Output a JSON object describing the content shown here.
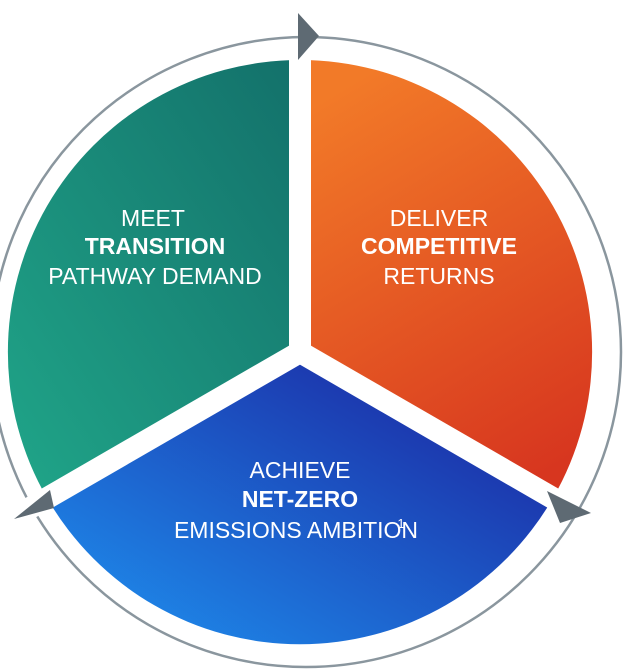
{
  "segments": {
    "transition": {
      "line1": "MEET",
      "line2": "TRANSITION",
      "line3": "PATHWAY DEMAND"
    },
    "returns": {
      "line1": "DELIVER",
      "line2": "COMPETITIVE",
      "line3": "RETURNS"
    },
    "netzero": {
      "line1": "ACHIEVE",
      "line2": "NET-ZERO",
      "line3": "EMISSIONS AMBITION",
      "footnote": "1"
    }
  },
  "colors": {
    "teal_start": "#13806E",
    "teal_end": "#1FA387",
    "orange_start": "#F07826",
    "orange_end": "#D63B20",
    "blue_start": "#1E8EF0",
    "blue_end": "#1C1F9E",
    "ring": "#8A969E",
    "arrow": "#5E6A73"
  }
}
